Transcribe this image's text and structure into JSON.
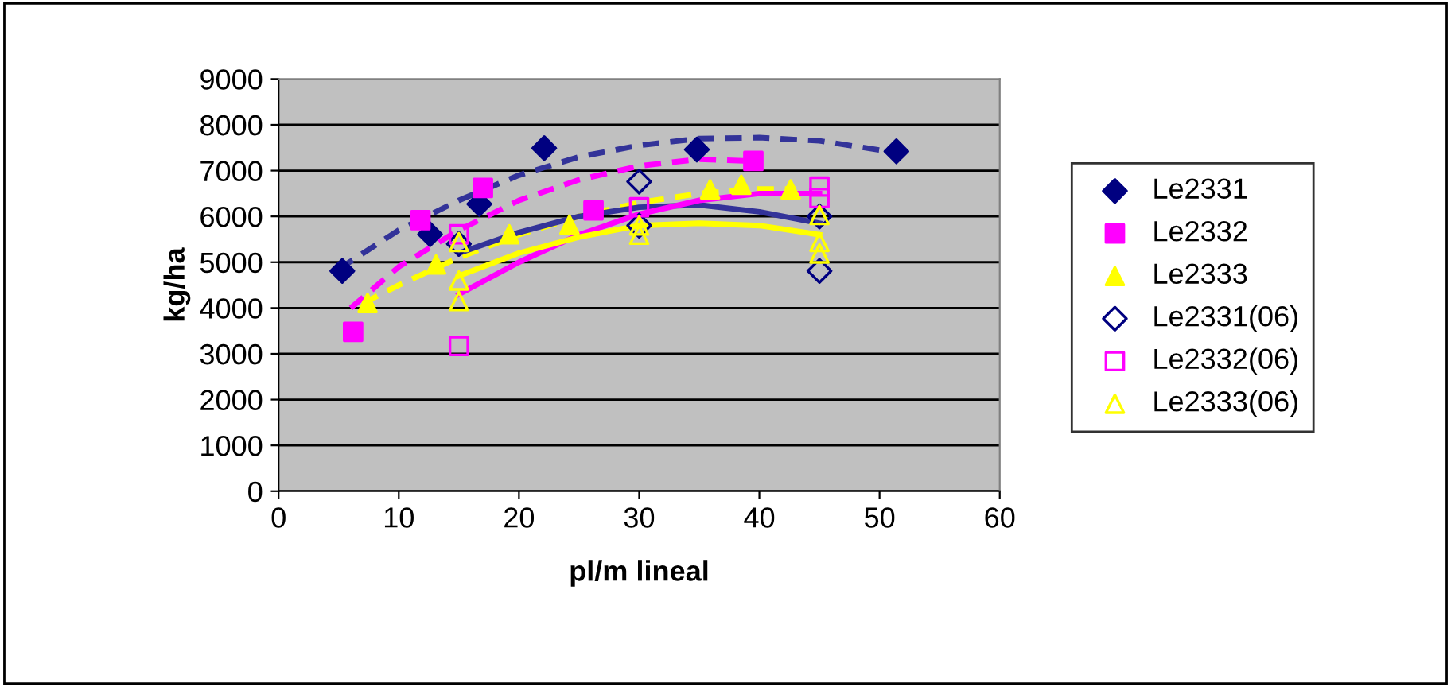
{
  "chart_data": {
    "type": "scatter",
    "xlabel": "pl/m lineal",
    "ylabel": "kg/ha",
    "xlim": [
      0,
      60
    ],
    "xticks": [
      0,
      10,
      20,
      30,
      40,
      50,
      60
    ],
    "ylim": [
      0,
      9000
    ],
    "yticks": [
      0,
      1000,
      2000,
      3000,
      4000,
      5000,
      6000,
      7000,
      8000,
      9000
    ],
    "grid": "y",
    "legend": "right",
    "series": [
      {
        "name": "Le2331",
        "color": "#000080",
        "marker": "diamond",
        "x": [
          5.3,
          12.6,
          16.7,
          22.1,
          34.8,
          51.4
        ],
        "values": [
          4810,
          5610,
          6270,
          7490,
          7460,
          7420
        ]
      },
      {
        "name": "Le2332",
        "color": "#ff00ff",
        "marker": "square",
        "x": [
          6.2,
          11.8,
          17,
          26.2,
          39.5
        ],
        "values": [
          3480,
          5920,
          6620,
          6130,
          7210
        ]
      },
      {
        "name": "Le2333",
        "color": "#ffff00",
        "marker": "triangle",
        "x": [
          7.4,
          13.1,
          19.2,
          24.2,
          35.9,
          38.5,
          42.6
        ],
        "values": [
          4110,
          4950,
          5610,
          5820,
          6590,
          6690,
          6590
        ]
      },
      {
        "name": "Le2331(06)",
        "color": "#000080",
        "marker": "diamond",
        "x": [
          15,
          30,
          30,
          45,
          45
        ],
        "values": [
          5400,
          6760,
          5800,
          6000,
          4810
        ]
      },
      {
        "name": "Le2332(06)",
        "color": "#ff00ff",
        "marker": "square",
        "x": [
          15,
          15,
          30,
          45,
          45
        ],
        "values": [
          3170,
          5610,
          6200,
          6650,
          6400
        ]
      },
      {
        "name": "Le2333(06)",
        "color": "#ffff00",
        "marker": "triangle",
        "x": [
          15,
          15,
          15,
          30,
          30,
          45,
          45,
          45
        ],
        "values": [
          5440,
          4600,
          4150,
          5600,
          5800,
          6030,
          5440,
          5190
        ]
      },
      {
        "type": "line",
        "color": "#333399",
        "line_style": "dashed",
        "x": [
          5,
          10,
          15,
          20,
          25,
          30,
          35,
          40,
          45,
          50,
          52
        ],
        "values": [
          4850,
          5700,
          6350,
          6900,
          7300,
          7550,
          7700,
          7720,
          7650,
          7450,
          7350
        ]
      },
      {
        "type": "line",
        "color": "#ff00ff",
        "line_style": "dashed",
        "x": [
          6,
          10,
          15,
          20,
          25,
          30,
          35,
          40
        ],
        "values": [
          4000,
          4900,
          5700,
          6350,
          6800,
          7100,
          7250,
          7200
        ]
      },
      {
        "type": "line",
        "color": "#ffff00",
        "line_style": "dashed",
        "x": [
          7,
          10,
          15,
          20,
          25,
          30,
          35,
          40,
          43
        ],
        "values": [
          4100,
          4500,
          5100,
          5600,
          6000,
          6300,
          6500,
          6600,
          6600
        ]
      },
      {
        "type": "line",
        "color": "#333399",
        "line_style": "solid",
        "x": [
          15,
          20,
          25,
          30,
          35,
          40,
          45
        ],
        "values": [
          5200,
          5650,
          6000,
          6200,
          6250,
          6100,
          5850
        ]
      },
      {
        "type": "line",
        "color": "#ff00ff",
        "line_style": "solid",
        "x": [
          15,
          20,
          25,
          30,
          35,
          40,
          45
        ],
        "values": [
          4300,
          5000,
          5600,
          6050,
          6350,
          6500,
          6500
        ]
      },
      {
        "type": "line",
        "color": "#ffff00",
        "line_style": "solid",
        "x": [
          15,
          20,
          25,
          30,
          35,
          40,
          45
        ],
        "values": [
          4700,
          5200,
          5550,
          5800,
          5850,
          5800,
          5600
        ]
      }
    ]
  }
}
